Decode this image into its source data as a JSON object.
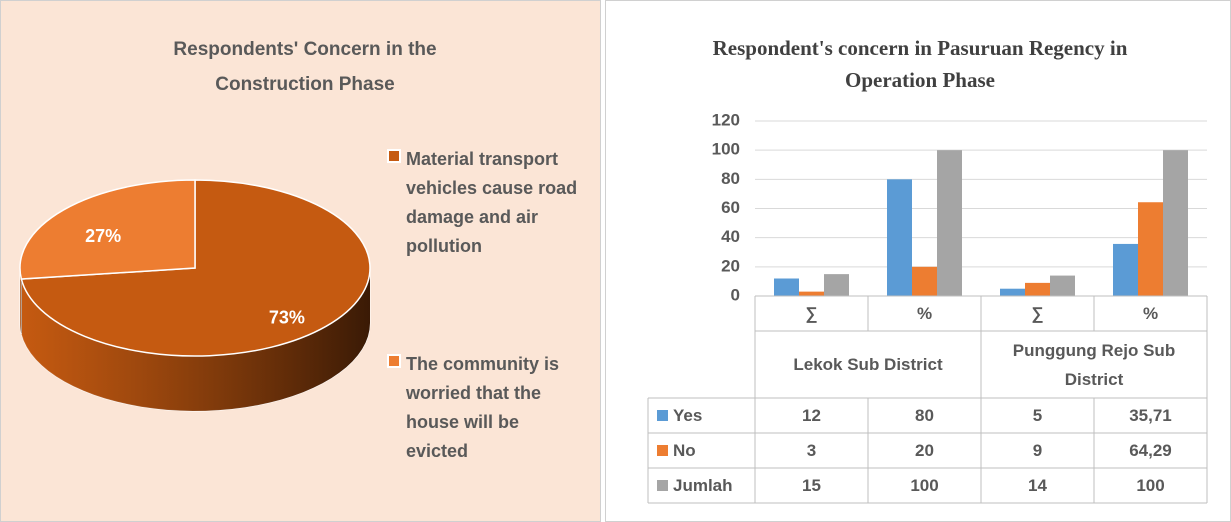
{
  "chart_data": [
    {
      "type": "pie",
      "title": "Respondents' Concern in the Construction Phase",
      "categories": [
        "Material transport vehicles cause road damage and air pollution",
        "The community is worried that the house will be evicted"
      ],
      "values": [
        73,
        27
      ],
      "value_labels": [
        "73%",
        "27%"
      ],
      "colors": [
        "#c55a11",
        "#ed7d31"
      ],
      "background": "#fbe5d6"
    },
    {
      "type": "bar",
      "title": "Respondent's concern in Pasuruan Regency in Operation Phase",
      "categories": [
        "∑",
        "%",
        "∑",
        "%"
      ],
      "category_groups": [
        "Lekok Sub District",
        "Punggung Rejo Sub District"
      ],
      "series": [
        {
          "name": "Yes",
          "color": "#5b9bd5",
          "values": [
            12,
            80,
            5,
            35.71
          ],
          "value_labels": [
            "12",
            "80",
            "5",
            "35,71"
          ]
        },
        {
          "name": "No",
          "color": "#ed7d31",
          "values": [
            3,
            20,
            9,
            64.29
          ],
          "value_labels": [
            "3",
            "20",
            "9",
            "64,29"
          ]
        },
        {
          "name": "Jumlah",
          "color": "#a5a5a5",
          "values": [
            15,
            100,
            14,
            100
          ],
          "value_labels": [
            "15",
            "100",
            "14",
            "100"
          ]
        }
      ],
      "ylim": [
        0,
        120
      ],
      "yticks": [
        0,
        20,
        40,
        60,
        80,
        100,
        120
      ],
      "grid": true,
      "data_table": true
    }
  ]
}
